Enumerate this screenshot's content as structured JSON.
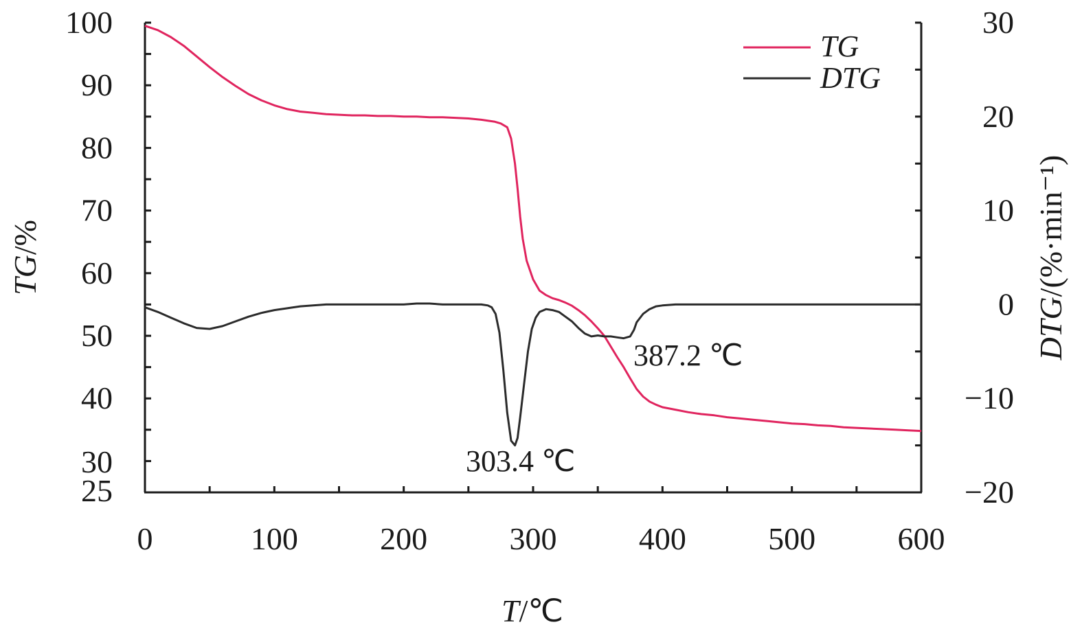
{
  "chart_data": {
    "type": "line",
    "xlabel": "T/℃",
    "ylabel_left": "TG/%",
    "ylabel_right": "DTG/(%·min⁻¹)",
    "xlim": [
      0,
      600
    ],
    "ylim_left": [
      25,
      100
    ],
    "ylim_right": [
      -20,
      30
    ],
    "x_ticks": [
      0,
      100,
      200,
      300,
      400,
      500,
      600
    ],
    "y_left_ticks": [
      100,
      90,
      80,
      70,
      60,
      50,
      40,
      30,
      25
    ],
    "y_right_ticks": [
      30,
      20,
      10,
      0,
      -10,
      -20
    ],
    "legend_position": "top-right",
    "series": [
      {
        "name": "TG",
        "axis": "left",
        "color": "#e0245e",
        "x": [
          0,
          10,
          20,
          30,
          40,
          50,
          60,
          70,
          80,
          90,
          100,
          110,
          120,
          130,
          140,
          150,
          160,
          170,
          180,
          190,
          200,
          210,
          220,
          230,
          240,
          250,
          260,
          270,
          275,
          280,
          283,
          286,
          288,
          290,
          292,
          295,
          300,
          305,
          310,
          315,
          320,
          325,
          330,
          335,
          340,
          345,
          350,
          355,
          360,
          365,
          370,
          375,
          380,
          385,
          390,
          395,
          400,
          410,
          420,
          430,
          440,
          450,
          460,
          470,
          480,
          490,
          500,
          510,
          520,
          530,
          540,
          550,
          560,
          570,
          580,
          590,
          600
        ],
        "y": [
          99.5,
          98.8,
          97.7,
          96.3,
          94.6,
          92.9,
          91.3,
          89.9,
          88.6,
          87.6,
          86.8,
          86.2,
          85.8,
          85.6,
          85.4,
          85.3,
          85.2,
          85.2,
          85.1,
          85.1,
          85.0,
          85.0,
          84.9,
          84.9,
          84.8,
          84.7,
          84.5,
          84.2,
          83.9,
          83.3,
          81.5,
          77.5,
          73.5,
          69.0,
          65.5,
          62.0,
          59.0,
          57.2,
          56.5,
          56.0,
          55.7,
          55.3,
          54.8,
          54.1,
          53.3,
          52.3,
          51.2,
          50.0,
          48.3,
          46.6,
          45.0,
          43.2,
          41.5,
          40.3,
          39.5,
          39.0,
          38.6,
          38.2,
          37.8,
          37.5,
          37.3,
          37.0,
          36.8,
          36.6,
          36.4,
          36.2,
          36.0,
          35.9,
          35.7,
          35.6,
          35.4,
          35.3,
          35.2,
          35.1,
          35.0,
          34.9,
          34.8
        ]
      },
      {
        "name": "DTG",
        "axis": "right",
        "color": "#2b2b2b",
        "x": [
          0,
          10,
          20,
          30,
          40,
          50,
          60,
          70,
          80,
          90,
          100,
          110,
          120,
          130,
          140,
          150,
          160,
          170,
          180,
          190,
          200,
          210,
          220,
          230,
          240,
          250,
          260,
          265,
          268,
          271,
          274,
          277,
          280,
          283,
          286,
          288,
          290,
          293,
          296,
          299,
          302,
          305,
          310,
          315,
          320,
          325,
          330,
          335,
          340,
          345,
          350,
          355,
          360,
          365,
          370,
          375,
          378,
          380,
          385,
          390,
          395,
          400,
          410,
          420,
          440,
          460,
          480,
          500,
          520,
          540,
          560,
          580,
          600
        ],
        "y": [
          -0.3,
          -0.8,
          -1.4,
          -2.0,
          -2.5,
          -2.6,
          -2.3,
          -1.8,
          -1.3,
          -0.9,
          -0.6,
          -0.4,
          -0.2,
          -0.1,
          0.0,
          0.0,
          0.0,
          0.0,
          0.0,
          0.0,
          0.0,
          0.1,
          0.1,
          0.0,
          0.0,
          0.0,
          0.0,
          -0.1,
          -0.3,
          -1.0,
          -3.0,
          -7.0,
          -11.5,
          -14.5,
          -15.0,
          -14.2,
          -12.0,
          -8.5,
          -5.0,
          -2.6,
          -1.4,
          -0.8,
          -0.5,
          -0.6,
          -0.8,
          -1.3,
          -1.8,
          -2.5,
          -3.1,
          -3.4,
          -3.3,
          -3.4,
          -3.4,
          -3.5,
          -3.6,
          -3.4,
          -2.7,
          -1.9,
          -1.0,
          -0.5,
          -0.2,
          -0.1,
          0.0,
          0.0,
          0.0,
          0.0,
          0.0,
          0.0,
          0.0,
          0.0,
          0.0,
          0.0,
          0.0
        ]
      }
    ],
    "annotations": [
      {
        "text": "303.4 ℃",
        "x": 303.4,
        "series": "DTG"
      },
      {
        "text": "387.2 ℃",
        "x": 387.2,
        "series": "DTG"
      }
    ]
  }
}
